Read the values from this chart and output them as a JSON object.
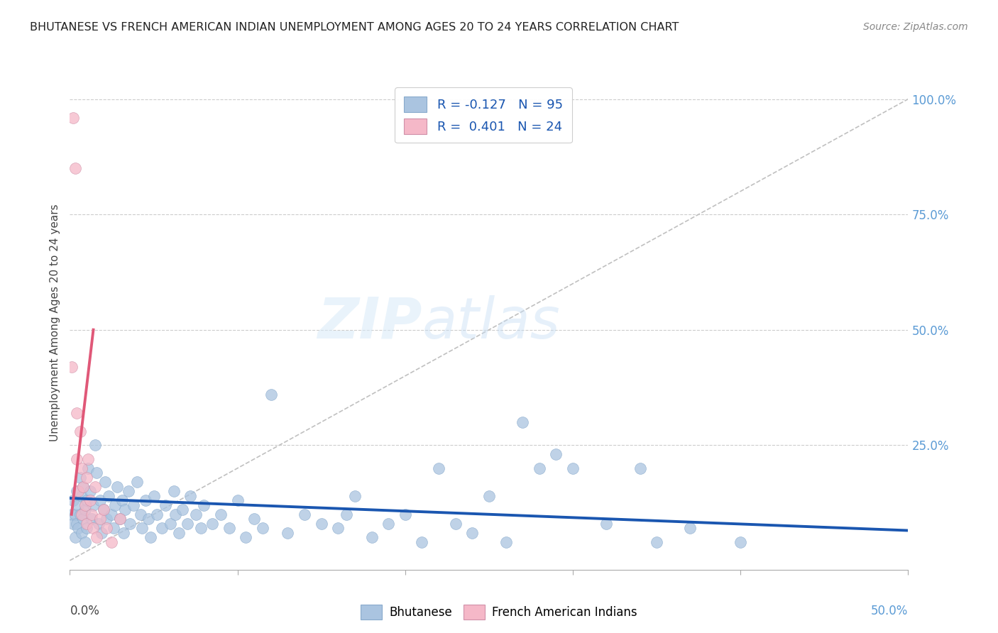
{
  "title": "BHUTANESE VS FRENCH AMERICAN INDIAN UNEMPLOYMENT AMONG AGES 20 TO 24 YEARS CORRELATION CHART",
  "source": "Source: ZipAtlas.com",
  "ylabel": "Unemployment Among Ages 20 to 24 years",
  "xlim": [
    0.0,
    0.5
  ],
  "ylim": [
    -0.02,
    1.05
  ],
  "watermark_top": "ZIP",
  "watermark_bot": "atlas",
  "legend_blue_label": "Bhutanese",
  "legend_pink_label": "French American Indians",
  "R_blue": -0.127,
  "N_blue": 95,
  "R_pink": 0.401,
  "N_pink": 24,
  "blue_color": "#aac4e0",
  "pink_color": "#f5b8c8",
  "blue_line_color": "#1a56b0",
  "pink_line_color": "#e05878",
  "diagonal_color": "#c8c8c8",
  "background_color": "#ffffff",
  "blue_scatter": [
    [
      0.001,
      0.1
    ],
    [
      0.002,
      0.08
    ],
    [
      0.002,
      0.13
    ],
    [
      0.003,
      0.05
    ],
    [
      0.003,
      0.1
    ],
    [
      0.004,
      0.15
    ],
    [
      0.004,
      0.08
    ],
    [
      0.005,
      0.12
    ],
    [
      0.005,
      0.07
    ],
    [
      0.006,
      0.18
    ],
    [
      0.006,
      0.1
    ],
    [
      0.007,
      0.14
    ],
    [
      0.007,
      0.06
    ],
    [
      0.008,
      0.09
    ],
    [
      0.008,
      0.16
    ],
    [
      0.009,
      0.11
    ],
    [
      0.009,
      0.04
    ],
    [
      0.01,
      0.13
    ],
    [
      0.01,
      0.07
    ],
    [
      0.011,
      0.2
    ],
    [
      0.012,
      0.15
    ],
    [
      0.013,
      0.09
    ],
    [
      0.014,
      0.12
    ],
    [
      0.015,
      0.25
    ],
    [
      0.016,
      0.19
    ],
    [
      0.017,
      0.08
    ],
    [
      0.018,
      0.13
    ],
    [
      0.019,
      0.06
    ],
    [
      0.02,
      0.11
    ],
    [
      0.021,
      0.17
    ],
    [
      0.022,
      0.09
    ],
    [
      0.023,
      0.14
    ],
    [
      0.025,
      0.1
    ],
    [
      0.026,
      0.07
    ],
    [
      0.027,
      0.12
    ],
    [
      0.028,
      0.16
    ],
    [
      0.03,
      0.09
    ],
    [
      0.031,
      0.13
    ],
    [
      0.032,
      0.06
    ],
    [
      0.033,
      0.11
    ],
    [
      0.035,
      0.15
    ],
    [
      0.036,
      0.08
    ],
    [
      0.038,
      0.12
    ],
    [
      0.04,
      0.17
    ],
    [
      0.042,
      0.1
    ],
    [
      0.043,
      0.07
    ],
    [
      0.045,
      0.13
    ],
    [
      0.047,
      0.09
    ],
    [
      0.048,
      0.05
    ],
    [
      0.05,
      0.14
    ],
    [
      0.052,
      0.1
    ],
    [
      0.055,
      0.07
    ],
    [
      0.057,
      0.12
    ],
    [
      0.06,
      0.08
    ],
    [
      0.062,
      0.15
    ],
    [
      0.063,
      0.1
    ],
    [
      0.065,
      0.06
    ],
    [
      0.067,
      0.11
    ],
    [
      0.07,
      0.08
    ],
    [
      0.072,
      0.14
    ],
    [
      0.075,
      0.1
    ],
    [
      0.078,
      0.07
    ],
    [
      0.08,
      0.12
    ],
    [
      0.085,
      0.08
    ],
    [
      0.09,
      0.1
    ],
    [
      0.095,
      0.07
    ],
    [
      0.1,
      0.13
    ],
    [
      0.105,
      0.05
    ],
    [
      0.11,
      0.09
    ],
    [
      0.115,
      0.07
    ],
    [
      0.12,
      0.36
    ],
    [
      0.13,
      0.06
    ],
    [
      0.14,
      0.1
    ],
    [
      0.15,
      0.08
    ],
    [
      0.16,
      0.07
    ],
    [
      0.165,
      0.1
    ],
    [
      0.17,
      0.14
    ],
    [
      0.18,
      0.05
    ],
    [
      0.19,
      0.08
    ],
    [
      0.2,
      0.1
    ],
    [
      0.21,
      0.04
    ],
    [
      0.22,
      0.2
    ],
    [
      0.23,
      0.08
    ],
    [
      0.24,
      0.06
    ],
    [
      0.25,
      0.14
    ],
    [
      0.26,
      0.04
    ],
    [
      0.27,
      0.3
    ],
    [
      0.28,
      0.2
    ],
    [
      0.29,
      0.23
    ],
    [
      0.3,
      0.2
    ],
    [
      0.32,
      0.08
    ],
    [
      0.34,
      0.2
    ],
    [
      0.35,
      0.04
    ],
    [
      0.37,
      0.07
    ],
    [
      0.4,
      0.04
    ]
  ],
  "pink_scatter": [
    [
      0.001,
      0.42
    ],
    [
      0.002,
      0.96
    ],
    [
      0.003,
      0.85
    ],
    [
      0.004,
      0.22
    ],
    [
      0.004,
      0.32
    ],
    [
      0.005,
      0.15
    ],
    [
      0.006,
      0.28
    ],
    [
      0.007,
      0.2
    ],
    [
      0.007,
      0.1
    ],
    [
      0.008,
      0.16
    ],
    [
      0.009,
      0.12
    ],
    [
      0.01,
      0.08
    ],
    [
      0.01,
      0.18
    ],
    [
      0.011,
      0.22
    ],
    [
      0.012,
      0.13
    ],
    [
      0.013,
      0.1
    ],
    [
      0.014,
      0.07
    ],
    [
      0.015,
      0.16
    ],
    [
      0.016,
      0.05
    ],
    [
      0.018,
      0.09
    ],
    [
      0.02,
      0.11
    ],
    [
      0.022,
      0.07
    ],
    [
      0.025,
      0.04
    ],
    [
      0.03,
      0.09
    ]
  ],
  "blue_line_x": [
    0.0,
    0.5
  ],
  "blue_line_y": [
    0.135,
    0.065
  ],
  "pink_line_x": [
    0.001,
    0.014
  ],
  "pink_line_y": [
    0.1,
    0.5
  ]
}
